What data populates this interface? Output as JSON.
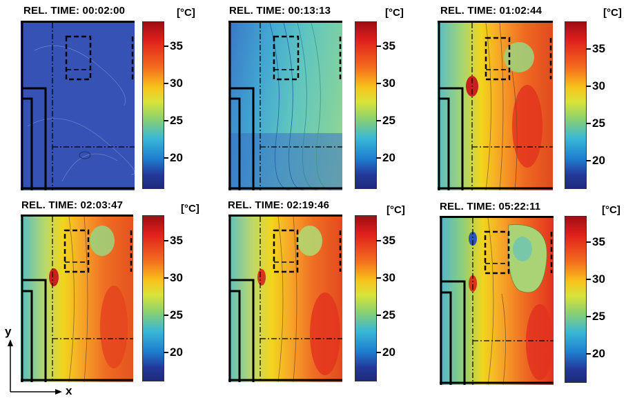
{
  "panels": [
    {
      "title": "REL. TIME: 00:02:00",
      "unit": "[°C]"
    },
    {
      "title": "REL. TIME: 00:13:13",
      "unit": "[°C]"
    },
    {
      "title": "REL. TIME: 01:02:44",
      "unit": "[°C]"
    },
    {
      "title": "REL. TIME: 02:03:47",
      "unit": "[°C]"
    },
    {
      "title": "REL. TIME: 02:19:46",
      "unit": "[°C]"
    },
    {
      "title": "REL. TIME: 05:22:11",
      "unit": "[°C]"
    }
  ],
  "colorbar_ticks": [
    "35",
    "30",
    "25",
    "20"
  ],
  "axes": {
    "y": "y",
    "x": "x"
  },
  "colors": {
    "hot": "#d62a1e",
    "warm": "#f58a1f",
    "mid": "#f2d51c",
    "cool": "#5cc3c7",
    "cold": "#2c55b4"
  }
}
